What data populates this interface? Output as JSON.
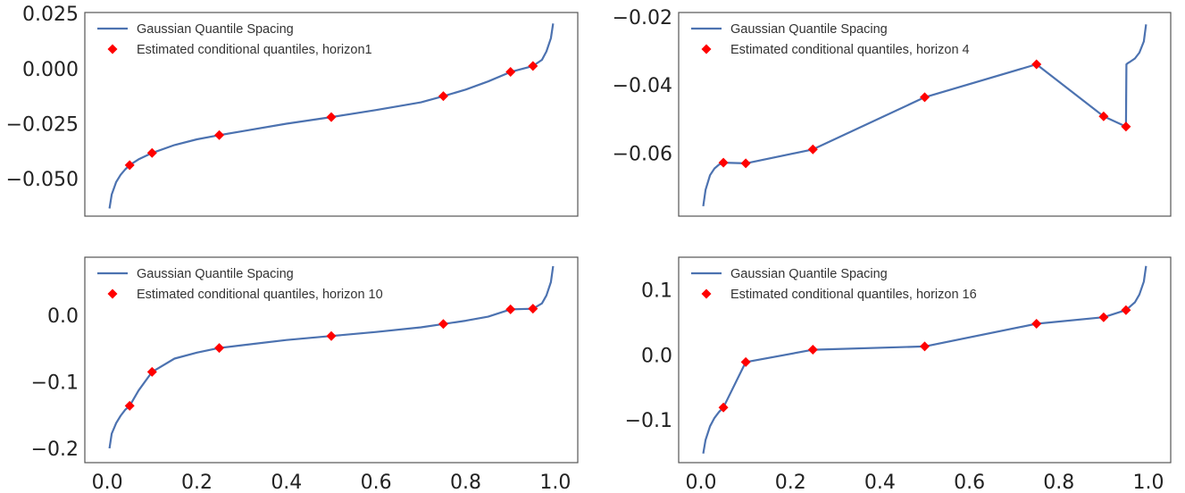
{
  "chart_data": [
    {
      "type": "line",
      "panel": "top-left",
      "xlim": [
        -0.05,
        1.05
      ],
      "ylim": [
        -0.067,
        0.0255
      ],
      "grid": false,
      "legend_position": "top-left",
      "yticks": [
        0.025,
        0.0,
        -0.025,
        -0.05
      ],
      "ytick_labels": [
        "0.025",
        "0.000",
        "−0.025",
        "−0.050"
      ],
      "xticks": [],
      "xtick_labels": [],
      "series": [
        {
          "name": "Gaussian Quantile Spacing",
          "kind": "line",
          "color": "#4c72b0",
          "x": [
            0.005,
            0.01,
            0.02,
            0.03,
            0.04,
            0.05,
            0.07,
            0.1,
            0.15,
            0.2,
            0.25,
            0.3,
            0.4,
            0.5,
            0.6,
            0.7,
            0.75,
            0.8,
            0.85,
            0.9,
            0.95,
            0.97,
            0.98,
            0.99,
            0.995
          ],
          "y": [
            -0.0635,
            -0.0572,
            -0.0515,
            -0.0482,
            -0.0458,
            -0.0438,
            -0.0412,
            -0.0383,
            -0.0347,
            -0.0321,
            -0.0302,
            -0.0285,
            -0.025,
            -0.022,
            -0.0188,
            -0.0153,
            -0.0125,
            -0.0095,
            -0.0058,
            -0.0015,
            0.0012,
            0.004,
            0.0078,
            0.0138,
            0.0205
          ]
        },
        {
          "name": "Estimated conditional quantiles, horizon1",
          "kind": "marker",
          "color": "#ff0000",
          "marker": "diamond",
          "x": [
            0.05,
            0.1,
            0.25,
            0.5,
            0.75,
            0.9,
            0.95
          ],
          "y": [
            -0.0438,
            -0.0383,
            -0.0302,
            -0.022,
            -0.0125,
            -0.0015,
            0.0012
          ]
        }
      ]
    },
    {
      "type": "line",
      "panel": "top-right",
      "xlim": [
        -0.05,
        1.05
      ],
      "ylim": [
        -0.0785,
        -0.0187
      ],
      "grid": false,
      "legend_position": "top-left",
      "yticks": [
        -0.02,
        -0.04,
        -0.06
      ],
      "ytick_labels": [
        "−0.02",
        "−0.04",
        "−0.06"
      ],
      "xticks": [],
      "xtick_labels": [],
      "series": [
        {
          "name": "Gaussian Quantile Spacing",
          "kind": "line",
          "color": "#4c72b0",
          "x": [
            0.005,
            0.01,
            0.02,
            0.03,
            0.04,
            0.05,
            0.1,
            0.25,
            0.5,
            0.75,
            0.9,
            0.95,
            0.951,
            0.955,
            0.96,
            0.97,
            0.98,
            0.99,
            0.995
          ],
          "y": [
            -0.0756,
            -0.0708,
            -0.0665,
            -0.0645,
            -0.0634,
            -0.0628,
            -0.063,
            -0.0589,
            -0.0436,
            -0.0339,
            -0.0492,
            -0.0522,
            -0.0339,
            -0.0335,
            -0.0331,
            -0.0322,
            -0.0305,
            -0.0272,
            -0.0222
          ]
        },
        {
          "name": "Estimated conditional quantiles, horizon 4",
          "kind": "marker",
          "color": "#ff0000",
          "marker": "diamond",
          "x": [
            0.05,
            0.1,
            0.25,
            0.5,
            0.75,
            0.9,
            0.95
          ],
          "y": [
            -0.0628,
            -0.063,
            -0.0589,
            -0.0436,
            -0.0339,
            -0.0492,
            -0.0522
          ]
        }
      ]
    },
    {
      "type": "line",
      "panel": "bottom-left",
      "xlim": [
        -0.05,
        1.05
      ],
      "ylim": [
        -0.2215,
        0.0875
      ],
      "grid": false,
      "legend_position": "top-left",
      "yticks": [
        0.0,
        -0.1,
        -0.2
      ],
      "ytick_labels": [
        "0.0",
        "−0.1",
        "−0.2"
      ],
      "xticks": [
        0.0,
        0.2,
        0.4,
        0.6,
        0.8,
        1.0
      ],
      "xtick_labels": [
        "0.0",
        "0.2",
        "0.4",
        "0.6",
        "0.8",
        "1.0"
      ],
      "series": [
        {
          "name": "Gaussian Quantile Spacing",
          "kind": "line",
          "color": "#4c72b0",
          "x": [
            0.005,
            0.01,
            0.02,
            0.03,
            0.04,
            0.05,
            0.07,
            0.1,
            0.15,
            0.2,
            0.25,
            0.3,
            0.4,
            0.5,
            0.6,
            0.7,
            0.75,
            0.8,
            0.85,
            0.9,
            0.95,
            0.97,
            0.98,
            0.99,
            0.995
          ],
          "y": [
            -0.2,
            -0.178,
            -0.162,
            -0.151,
            -0.142,
            -0.136,
            -0.113,
            -0.085,
            -0.065,
            -0.056,
            -0.049,
            -0.045,
            -0.037,
            -0.031,
            -0.025,
            -0.018,
            -0.013,
            -0.008,
            -0.002,
            0.009,
            0.01,
            0.018,
            0.03,
            0.05,
            0.074
          ]
        },
        {
          "name": "Estimated conditional quantiles, horizon 10",
          "kind": "marker",
          "color": "#ff0000",
          "marker": "diamond",
          "x": [
            0.05,
            0.1,
            0.25,
            0.5,
            0.75,
            0.9,
            0.95
          ],
          "y": [
            -0.136,
            -0.085,
            -0.049,
            -0.031,
            -0.013,
            0.009,
            0.01
          ]
        }
      ]
    },
    {
      "type": "line",
      "panel": "bottom-right",
      "xlim": [
        -0.05,
        1.05
      ],
      "ylim": [
        -0.166,
        0.1505
      ],
      "grid": false,
      "legend_position": "top-left",
      "yticks": [
        0.1,
        0.0,
        -0.1
      ],
      "ytick_labels": [
        "0.1",
        "0.0",
        "−0.1"
      ],
      "xticks": [
        0.0,
        0.2,
        0.4,
        0.6,
        0.8,
        1.0
      ],
      "xtick_labels": [
        "0.0",
        "0.2",
        "0.4",
        "0.6",
        "0.8",
        "1.0"
      ],
      "series": [
        {
          "name": "Gaussian Quantile Spacing",
          "kind": "line",
          "color": "#4c72b0",
          "x": [
            0.005,
            0.01,
            0.02,
            0.03,
            0.04,
            0.05,
            0.1,
            0.25,
            0.5,
            0.75,
            0.9,
            0.95,
            0.97,
            0.98,
            0.99,
            0.995
          ],
          "y": [
            -0.152,
            -0.131,
            -0.11,
            -0.097,
            -0.088,
            -0.081,
            -0.011,
            0.008,
            0.013,
            0.048,
            0.058,
            0.069,
            0.081,
            0.093,
            0.113,
            0.137
          ]
        },
        {
          "name": "Estimated conditional quantiles, horizon 16",
          "kind": "marker",
          "color": "#ff0000",
          "marker": "diamond",
          "x": [
            0.05,
            0.1,
            0.25,
            0.5,
            0.75,
            0.9,
            0.95
          ],
          "y": [
            -0.081,
            -0.011,
            0.008,
            0.013,
            0.048,
            0.058,
            0.069
          ]
        }
      ]
    }
  ]
}
